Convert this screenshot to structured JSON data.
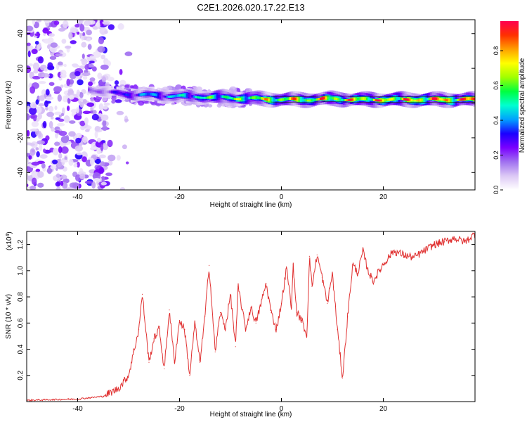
{
  "chart_data": [
    {
      "type": "heatmap",
      "title": "C2E1.2026.020.17.22.E13",
      "xlabel": "Height of straight line (km)",
      "ylabel": "Frequency (Hz)",
      "xlim": [
        -50,
        38
      ],
      "ylim": [
        -50,
        48
      ],
      "xticks": [
        -40,
        -20,
        0,
        20
      ],
      "yticks": [
        -40,
        -20,
        0,
        20,
        40
      ],
      "colorbar": {
        "label": "Normalized spectral amplitude",
        "range": [
          0,
          0.97
        ],
        "ticks": [
          0.0,
          0.2,
          0.4,
          0.6,
          0.8
        ],
        "tick_labels": [
          "0.0",
          "0.2",
          "0.4",
          "0.6",
          "0.8"
        ],
        "colors": [
          "#ffffff",
          "#dcc8f5",
          "#a070f0",
          "#7a00ff",
          "#1a00ff",
          "#00a0ff",
          "#00ffd0",
          "#00ff40",
          "#a0ff00",
          "#ffff00",
          "#ffa000",
          "#ff3000",
          "#ff0050"
        ]
      },
      "ridge": {
        "height_km": [
          -38,
          -34,
          -30,
          -25,
          -20,
          -15,
          -10,
          -5,
          0,
          5,
          10,
          15,
          20,
          25,
          30,
          38
        ],
        "frequency_hz": [
          8,
          6,
          5,
          4.5,
          4,
          3.5,
          3,
          2.5,
          2,
          2,
          2.5,
          2,
          2,
          2,
          2,
          2
        ],
        "amplitude": [
          0.2,
          0.25,
          0.4,
          0.45,
          0.5,
          0.6,
          0.65,
          0.75,
          0.8,
          0.82,
          0.85,
          0.85,
          0.88,
          0.9,
          0.92,
          0.95
        ]
      },
      "noise_region_km": [
        -50,
        -34
      ]
    },
    {
      "type": "line",
      "xlabel": "Height of straight line (km)",
      "ylabel": "SNR (10 * v/v)",
      "y_multiplier": "(x10^4)",
      "y_multiplier_base": "(x10",
      "y_multiplier_exp": "4",
      "y_multiplier_close": ")",
      "xlim": [
        -50,
        38
      ],
      "ylim": [
        0,
        1.3
      ],
      "xticks": [
        -40,
        -20,
        0,
        20
      ],
      "yticks": [
        0.2,
        0.4,
        0.6,
        0.8,
        1.0,
        1.2
      ],
      "series": [
        {
          "name": "SNR",
          "color": "#e03030",
          "x": [
            -50,
            -45,
            -40,
            -35,
            -32,
            -30,
            -29,
            -28,
            -27.3,
            -26,
            -25,
            -24,
            -23,
            -22,
            -21,
            -20,
            -19,
            -18,
            -17,
            -16,
            -15,
            -14.2,
            -13,
            -12,
            -11,
            -10,
            -9,
            -8.5,
            -7,
            -6,
            -5,
            -4,
            -3,
            -2,
            -1,
            0,
            1,
            2,
            2.3,
            3,
            4,
            5,
            5.5,
            6,
            7,
            8,
            9,
            10,
            11,
            12,
            13,
            14,
            15,
            16,
            17,
            18,
            20,
            22,
            24,
            26,
            28,
            30,
            32,
            34,
            36,
            38
          ],
          "y": [
            0.01,
            0.015,
            0.02,
            0.04,
            0.1,
            0.2,
            0.38,
            0.55,
            0.82,
            0.3,
            0.48,
            0.56,
            0.25,
            0.7,
            0.3,
            0.62,
            0.55,
            0.2,
            0.6,
            0.3,
            0.65,
            1.04,
            0.38,
            0.68,
            0.56,
            0.82,
            0.42,
            0.88,
            0.55,
            0.72,
            0.6,
            0.75,
            0.9,
            0.68,
            0.55,
            0.75,
            1.02,
            0.72,
            1.05,
            0.68,
            0.62,
            0.5,
            1.11,
            0.88,
            1.12,
            0.95,
            0.75,
            0.98,
            0.55,
            0.18,
            0.65,
            1.05,
            0.98,
            1.15,
            1.0,
            0.92,
            1.05,
            1.15,
            1.12,
            1.1,
            1.15,
            1.2,
            1.22,
            1.25,
            1.22,
            1.28
          ]
        }
      ]
    }
  ]
}
